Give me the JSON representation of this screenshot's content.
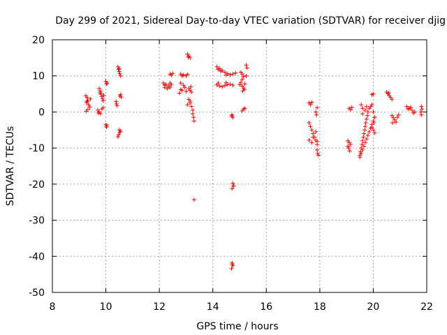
{
  "chart_data": {
    "type": "scatter",
    "title": "Day 299 of 2021, Sidereal Day-to-day VTEC variation (SDTVAR) for receiver djig",
    "xlabel": "GPS time / hours",
    "ylabel": "SDTVAR / TECUs",
    "xlim": [
      8,
      22
    ],
    "ylim": [
      -50,
      20
    ],
    "xticks": [
      8,
      10,
      12,
      14,
      16,
      18,
      20,
      22
    ],
    "yticks": [
      -50,
      -40,
      -30,
      -20,
      -10,
      0,
      10,
      20
    ],
    "grid": true,
    "marker": "+",
    "marker_color": "#ff0000",
    "series": [
      {
        "points": [
          [
            9.25,
            4.5
          ],
          [
            9.3,
            4.0
          ],
          [
            9.32,
            3.2
          ],
          [
            9.28,
            2.6
          ],
          [
            9.35,
            2.0
          ],
          [
            9.4,
            1.4
          ],
          [
            9.33,
            0.7
          ],
          [
            9.27,
            0.2
          ],
          [
            9.42,
            3.6
          ],
          [
            9.3,
            2.9
          ],
          [
            9.75,
            6.5
          ],
          [
            9.8,
            5.8
          ],
          [
            9.82,
            5.0
          ],
          [
            9.85,
            4.3
          ],
          [
            9.88,
            3.6
          ],
          [
            9.9,
            3.1
          ],
          [
            9.92,
            4.6
          ],
          [
            9.78,
            5.3
          ],
          [
            9.7,
            0.5
          ],
          [
            9.75,
            0.0
          ],
          [
            9.8,
            -0.5
          ],
          [
            9.85,
            0.8
          ],
          [
            9.9,
            1.2
          ],
          [
            9.72,
            -0.3
          ],
          [
            10.0,
            8.5
          ],
          [
            10.02,
            7.8
          ],
          [
            10.05,
            8.0
          ],
          [
            10.0,
            -3.5
          ],
          [
            10.02,
            -4.2
          ],
          [
            10.04,
            -3.8
          ],
          [
            10.45,
            12.5
          ],
          [
            10.47,
            11.8
          ],
          [
            10.5,
            11.2
          ],
          [
            10.52,
            10.6
          ],
          [
            10.55,
            10.0
          ],
          [
            10.5,
            12.0
          ],
          [
            10.38,
            2.9
          ],
          [
            10.4,
            2.2
          ],
          [
            10.42,
            1.7
          ],
          [
            10.55,
            4.8
          ],
          [
            10.58,
            4.1
          ],
          [
            10.52,
            4.4
          ],
          [
            10.5,
            -5.0
          ],
          [
            10.52,
            -5.7
          ],
          [
            10.48,
            -6.3
          ],
          [
            10.45,
            -6.9
          ],
          [
            10.55,
            -5.3
          ],
          [
            12.15,
            8.0
          ],
          [
            12.25,
            7.6
          ],
          [
            12.35,
            7.2
          ],
          [
            12.45,
            7.6
          ],
          [
            12.2,
            6.8
          ],
          [
            12.3,
            6.5
          ],
          [
            12.4,
            6.8
          ],
          [
            12.2,
            7.4
          ],
          [
            12.4,
            8.0
          ],
          [
            12.4,
            10.5
          ],
          [
            12.45,
            10.2
          ],
          [
            12.5,
            10.7
          ],
          [
            12.8,
            10.5
          ],
          [
            12.9,
            10.2
          ],
          [
            13.0,
            10.0
          ],
          [
            13.05,
            10.4
          ],
          [
            12.85,
            10.0
          ],
          [
            12.8,
            8.0
          ],
          [
            12.9,
            7.4
          ],
          [
            12.95,
            6.8
          ],
          [
            12.85,
            6.0
          ],
          [
            13.0,
            5.7
          ],
          [
            12.75,
            5.2
          ],
          [
            12.8,
            6.2
          ],
          [
            13.05,
            16.0
          ],
          [
            13.1,
            15.5
          ],
          [
            13.15,
            15.0
          ],
          [
            13.08,
            15.2
          ],
          [
            13.1,
            6.5
          ],
          [
            13.15,
            6.0
          ],
          [
            13.2,
            5.5
          ],
          [
            13.18,
            7.0
          ],
          [
            13.1,
            3.5
          ],
          [
            13.15,
            2.5
          ],
          [
            13.2,
            1.5
          ],
          [
            13.25,
            0.5
          ],
          [
            13.15,
            3.0
          ],
          [
            13.05,
            2.0
          ],
          [
            13.25,
            -0.5
          ],
          [
            13.28,
            -1.5
          ],
          [
            13.3,
            -2.5
          ],
          [
            13.3,
            -24.3
          ],
          [
            14.15,
            12.5
          ],
          [
            14.25,
            12.0
          ],
          [
            14.35,
            11.5
          ],
          [
            14.45,
            11.0
          ],
          [
            14.55,
            10.6
          ],
          [
            14.65,
            10.3
          ],
          [
            14.75,
            10.5
          ],
          [
            14.85,
            10.8
          ],
          [
            14.3,
            11.3
          ],
          [
            14.5,
            10.2
          ],
          [
            14.2,
            11.8
          ],
          [
            14.15,
            7.5
          ],
          [
            14.25,
            7.2
          ],
          [
            14.35,
            7.0
          ],
          [
            14.45,
            7.3
          ],
          [
            14.55,
            7.6
          ],
          [
            14.65,
            7.7
          ],
          [
            14.75,
            7.4
          ],
          [
            14.2,
            8.0
          ],
          [
            14.5,
            8.1
          ],
          [
            14.72,
            -0.8
          ],
          [
            14.75,
            -1.5
          ],
          [
            14.7,
            -1.1
          ],
          [
            14.75,
            -19.8
          ],
          [
            14.78,
            -20.5
          ],
          [
            14.72,
            -21.2
          ],
          [
            14.72,
            -41.8
          ],
          [
            14.75,
            -42.6
          ],
          [
            14.7,
            -43.4
          ],
          [
            14.73,
            -42.2
          ],
          [
            15.05,
            11.0
          ],
          [
            15.1,
            10.5
          ],
          [
            15.15,
            9.8
          ],
          [
            15.1,
            9.0
          ],
          [
            15.05,
            8.2
          ],
          [
            15.0,
            7.6
          ],
          [
            15.1,
            7.2
          ],
          [
            15.15,
            6.6
          ],
          [
            15.2,
            7.8
          ],
          [
            15.12,
            5.8
          ],
          [
            15.18,
            6.2
          ],
          [
            15.25,
            13.0
          ],
          [
            15.28,
            12.2
          ],
          [
            15.25,
            10.0
          ],
          [
            15.15,
            0.8
          ],
          [
            15.2,
            1.0
          ],
          [
            15.1,
            0.3
          ],
          [
            17.6,
            2.5
          ],
          [
            17.65,
            2.0
          ],
          [
            17.7,
            2.7
          ],
          [
            17.6,
            -3.0
          ],
          [
            17.65,
            -4.0
          ],
          [
            17.7,
            -5.0
          ],
          [
            17.75,
            -6.0
          ],
          [
            17.8,
            -7.0
          ],
          [
            17.85,
            -7.8
          ],
          [
            17.9,
            -8.2
          ],
          [
            17.7,
            -8.5
          ],
          [
            17.6,
            -7.8
          ],
          [
            17.75,
            -7.0
          ],
          [
            17.85,
            -5.5
          ],
          [
            17.9,
            -9.0
          ],
          [
            17.9,
            -10.5
          ],
          [
            17.92,
            -11.5
          ],
          [
            17.95,
            -12.0
          ],
          [
            17.85,
            0.0
          ],
          [
            17.9,
            1.2
          ],
          [
            17.88,
            -0.8
          ],
          [
            19.1,
            1.0
          ],
          [
            19.15,
            0.6
          ],
          [
            19.2,
            1.3
          ],
          [
            19.05,
            -8.0
          ],
          [
            19.1,
            -8.5
          ],
          [
            19.15,
            -9.0
          ],
          [
            19.08,
            -10.0
          ],
          [
            19.12,
            -10.8
          ],
          [
            19.05,
            -9.5
          ],
          [
            19.5,
            -12.0
          ],
          [
            19.52,
            -11.0
          ],
          [
            19.55,
            -10.0
          ],
          [
            19.58,
            -9.0
          ],
          [
            19.6,
            -8.0
          ],
          [
            19.63,
            -7.0
          ],
          [
            19.65,
            -6.0
          ],
          [
            19.68,
            -5.0
          ],
          [
            19.7,
            -4.0
          ],
          [
            19.72,
            -3.0
          ],
          [
            19.75,
            -2.0
          ],
          [
            19.78,
            -1.0
          ],
          [
            19.8,
            0.0
          ],
          [
            19.85,
            1.0
          ],
          [
            19.9,
            1.5
          ],
          [
            19.95,
            2.0
          ],
          [
            19.5,
            -12.5
          ],
          [
            19.55,
            -11.5
          ],
          [
            19.6,
            -10.5
          ],
          [
            19.65,
            -9.5
          ],
          [
            19.7,
            -8.5
          ],
          [
            19.75,
            -7.5
          ],
          [
            19.8,
            -6.5
          ],
          [
            19.85,
            -5.5
          ],
          [
            19.9,
            -4.5
          ],
          [
            19.95,
            -3.5
          ],
          [
            20.0,
            -2.5
          ],
          [
            20.05,
            -1.5
          ],
          [
            19.6,
            -0.5
          ],
          [
            19.7,
            0.5
          ],
          [
            19.75,
            1.5
          ],
          [
            19.55,
            2.0
          ],
          [
            19.6,
            1.0
          ],
          [
            19.95,
            4.8
          ],
          [
            20.0,
            5.0
          ],
          [
            20.0,
            -5.0
          ],
          [
            20.05,
            -5.8
          ],
          [
            19.95,
            -4.2
          ],
          [
            20.02,
            -3.0
          ],
          [
            20.05,
            -1.5
          ],
          [
            20.0,
            0.0
          ],
          [
            20.5,
            5.5
          ],
          [
            20.55,
            5.0
          ],
          [
            20.6,
            4.5
          ],
          [
            20.65,
            4.0
          ],
          [
            20.7,
            3.5
          ],
          [
            20.58,
            5.3
          ],
          [
            20.7,
            -1.0
          ],
          [
            20.75,
            -1.6
          ],
          [
            20.8,
            -2.2
          ],
          [
            20.85,
            -2.8
          ],
          [
            20.72,
            -3.0
          ],
          [
            20.9,
            -1.5
          ],
          [
            20.95,
            -0.8
          ],
          [
            21.25,
            1.5
          ],
          [
            21.35,
            1.0
          ],
          [
            21.45,
            0.5
          ],
          [
            21.55,
            0.0
          ],
          [
            21.3,
            0.8
          ],
          [
            21.4,
            1.3
          ],
          [
            21.5,
            -0.3
          ],
          [
            21.8,
            1.5
          ],
          [
            21.82,
            0.8
          ],
          [
            21.78,
            0.0
          ],
          [
            21.8,
            -0.8
          ]
        ]
      }
    ]
  }
}
